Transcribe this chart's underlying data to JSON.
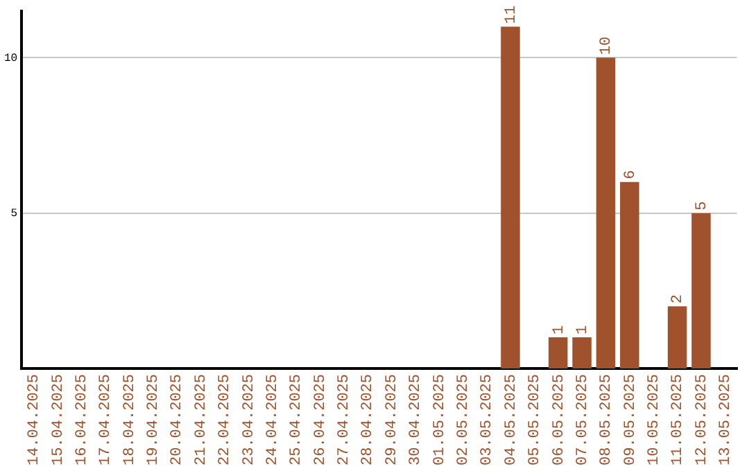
{
  "chart_data": {
    "type": "bar",
    "categories": [
      "14.04.2025",
      "15.04.2025",
      "16.04.2025",
      "17.04.2025",
      "18.04.2025",
      "19.04.2025",
      "20.04.2025",
      "21.04.2025",
      "22.04.2025",
      "23.04.2025",
      "24.04.2025",
      "25.04.2025",
      "26.04.2025",
      "27.04.2025",
      "28.04.2025",
      "29.04.2025",
      "30.04.2025",
      "01.05.2025",
      "02.05.2025",
      "03.05.2025",
      "04.05.2025",
      "05.05.2025",
      "06.05.2025",
      "07.05.2025",
      "08.05.2025",
      "09.05.2025",
      "10.05.2025",
      "11.05.2025",
      "12.05.2025",
      "13.05.2025"
    ],
    "values": [
      0,
      0,
      0,
      0,
      0,
      0,
      0,
      0,
      0,
      0,
      0,
      0,
      0,
      0,
      0,
      0,
      0,
      0,
      0,
      0,
      11,
      0,
      1,
      1,
      10,
      6,
      0,
      2,
      5,
      0
    ],
    "value_labels": [
      null,
      null,
      null,
      null,
      null,
      null,
      null,
      null,
      null,
      null,
      null,
      null,
      null,
      null,
      null,
      null,
      null,
      null,
      null,
      null,
      "11",
      null,
      "1",
      "1",
      "10",
      "6",
      null,
      "2",
      "5",
      null
    ],
    "color": "#a0522d",
    "ylim": [
      0,
      11.5
    ],
    "yticks": [
      5,
      10
    ],
    "grid": "y",
    "legend": false
  }
}
